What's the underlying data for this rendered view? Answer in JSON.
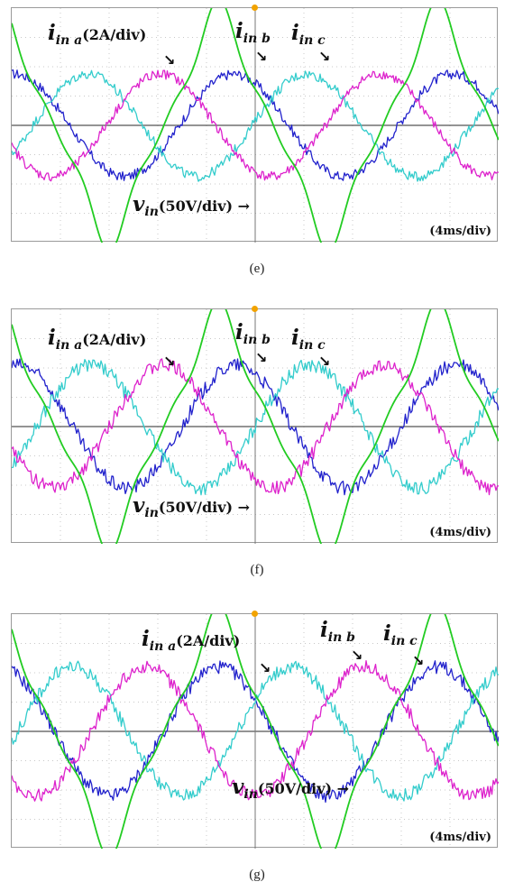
{
  "panels": [
    {
      "caption": "(e)",
      "labels": {
        "ia_sym": "i",
        "ia_sub": "in a",
        "ia_scale": "(2A/div)",
        "ib_sym": "i",
        "ib_sub": "in b",
        "ic_sym": "i",
        "ic_sub": "in c",
        "v_sym": "v",
        "v_sub": "in",
        "v_scale": "(50V/div)"
      },
      "timebase": "(4ms/div)"
    },
    {
      "caption": "(f)",
      "labels": {
        "ia_sym": "i",
        "ia_sub": "in a",
        "ia_scale": "(2A/div)",
        "ib_sym": "i",
        "ib_sub": "in b",
        "ic_sym": "i",
        "ic_sub": "in c",
        "v_sym": "v",
        "v_sub": "in",
        "v_scale": "(50V/div)"
      },
      "timebase": "(4ms/div)"
    },
    {
      "caption": "(g)",
      "labels": {
        "ia_sym": "i",
        "ia_sub": "in a",
        "ia_scale": "(2A/div)",
        "ib_sym": "i",
        "ib_sub": "in b",
        "ic_sym": "i",
        "ic_sub": "in c",
        "v_sym": "v",
        "v_sub": "in",
        "v_scale": "(50V/div)"
      },
      "timebase": "(4ms/div)"
    }
  ],
  "chart_data": [
    {
      "type": "line",
      "grid": true,
      "x_divisions": 10,
      "y_divisions": 8,
      "colors": {
        "v_in": "#22cc22",
        "i_in_a": "#2222cc",
        "i_in_b": "#33cccc",
        "i_in_c": "#dd22cc"
      },
      "series": [
        {
          "key": "i_in_a",
          "amplitude_div": 1.75,
          "period_div": 4.5,
          "phase_deg": 85,
          "noise": 0.12
        },
        {
          "key": "i_in_b",
          "amplitude_div": 1.75,
          "period_div": 4.5,
          "phase_deg": -35,
          "noise": 0.12
        },
        {
          "key": "i_in_c",
          "amplitude_div": 1.75,
          "period_div": 4.5,
          "phase_deg": 205,
          "noise": 0.12
        },
        {
          "key": "v_in",
          "amplitude_div": 3.6,
          "period_div": 4.5,
          "phase_deg": 110,
          "shape": "distorted"
        }
      ]
    },
    {
      "type": "line",
      "grid": true,
      "x_divisions": 10,
      "y_divisions": 8,
      "colors": {
        "v_in": "#22cc22",
        "i_in_a": "#2222cc",
        "i_in_b": "#33cccc",
        "i_in_c": "#dd22cc"
      },
      "series": [
        {
          "key": "i_in_a",
          "amplitude_div": 2.1,
          "period_div": 4.5,
          "phase_deg": 80,
          "noise": 0.14
        },
        {
          "key": "i_in_b",
          "amplitude_div": 2.1,
          "period_div": 4.5,
          "phase_deg": -40,
          "noise": 0.14
        },
        {
          "key": "i_in_c",
          "amplitude_div": 2.1,
          "period_div": 4.5,
          "phase_deg": 200,
          "noise": 0.14
        },
        {
          "key": "v_in",
          "amplitude_div": 3.6,
          "period_div": 4.5,
          "phase_deg": 110,
          "shape": "distorted"
        }
      ]
    },
    {
      "type": "line",
      "grid": true,
      "x_divisions": 10,
      "y_divisions": 8,
      "colors": {
        "v_in": "#22cc22",
        "i_in_a": "#2222cc",
        "i_in_b": "#33cccc",
        "i_in_c": "#dd22cc"
      },
      "series": [
        {
          "key": "i_in_a",
          "amplitude_div": 2.2,
          "period_div": 4.5,
          "phase_deg": 110,
          "noise": 0.13
        },
        {
          "key": "i_in_b",
          "amplitude_div": 2.2,
          "period_div": 4.5,
          "phase_deg": -10,
          "noise": 0.13
        },
        {
          "key": "i_in_c",
          "amplitude_div": 2.2,
          "period_div": 4.5,
          "phase_deg": 230,
          "noise": 0.13
        },
        {
          "key": "v_in",
          "amplitude_div": 3.6,
          "period_div": 4.5,
          "phase_deg": 110,
          "shape": "distorted"
        }
      ]
    }
  ]
}
